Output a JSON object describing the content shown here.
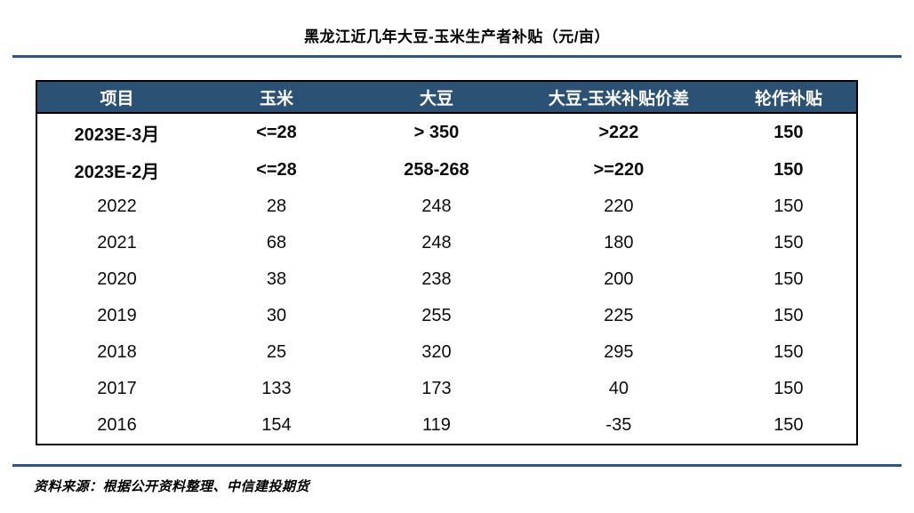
{
  "page": {
    "title": "黑龙江近几年大豆-玉米生产者补贴（元/亩）",
    "source": "资料来源：根据公开资料整理、中信建投期货"
  },
  "colors": {
    "header_bg": "#2B5274",
    "header_text": "#FFFFFF",
    "rule_blue": "#2E5586",
    "table_border": "#000000"
  },
  "chart_data": {
    "type": "table",
    "title": "黑龙江近几年大豆-玉米生产者补贴（元/亩）",
    "columns": [
      "项目",
      "玉米",
      "大豆",
      "大豆-玉米补贴价差",
      "轮作补贴"
    ],
    "rows": [
      {
        "cells": [
          "2023E-3月",
          "<=28",
          "> 350",
          ">222",
          "150"
        ],
        "bold": true
      },
      {
        "cells": [
          "2023E-2月",
          "<=28",
          "258-268",
          ">=220",
          "150"
        ],
        "bold": true
      },
      {
        "cells": [
          "2022",
          "28",
          "248",
          "220",
          "150"
        ],
        "bold": false
      },
      {
        "cells": [
          "2021",
          "68",
          "248",
          "180",
          "150"
        ],
        "bold": false
      },
      {
        "cells": [
          "2020",
          "38",
          "238",
          "200",
          "150"
        ],
        "bold": false
      },
      {
        "cells": [
          "2019",
          "30",
          "255",
          "225",
          "150"
        ],
        "bold": false
      },
      {
        "cells": [
          "2018",
          "25",
          "320",
          "295",
          "150"
        ],
        "bold": false
      },
      {
        "cells": [
          "2017",
          "133",
          "173",
          "40",
          "150"
        ],
        "bold": false
      },
      {
        "cells": [
          "2016",
          "154",
          "119",
          "-35",
          "150"
        ],
        "bold": false
      }
    ],
    "source_note": "资料来源：根据公开资料整理、中信建投期货",
    "layout": {
      "grid": "outer-border-only",
      "header_style": "navy-filled",
      "bold_rows": [
        0,
        1
      ]
    }
  }
}
